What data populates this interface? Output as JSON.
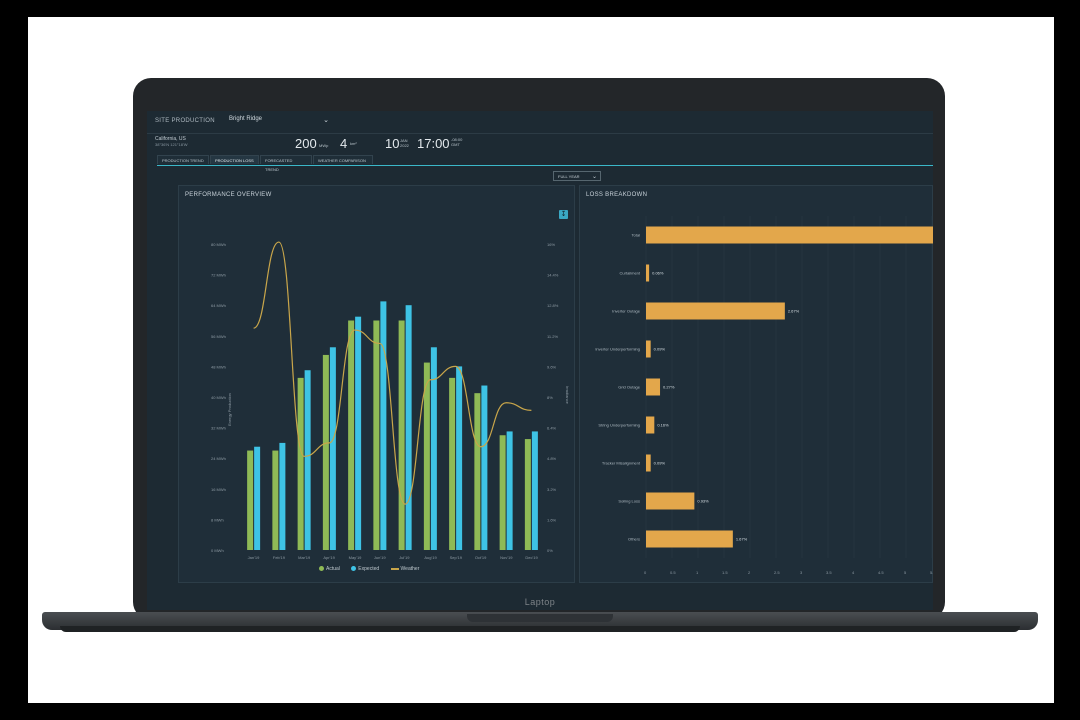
{
  "header": {
    "site_label": "SITE PRODUCTION",
    "site_value": "Bright Ridge",
    "location": "California, US",
    "coords": "38°36'N 121°18'W",
    "capacity_value": "200",
    "capacity_unit": "MWp",
    "area_value": "4",
    "area_unit": "km²",
    "date_value": "10",
    "date_month": "JAN",
    "date_year": "2022",
    "time_value": "17:00",
    "time_tz1": "GMT",
    "time_tz2": "-08:00"
  },
  "tabs": [
    {
      "label": "PRODUCTION TREND"
    },
    {
      "label": "PRODUCTION LOSS"
    },
    {
      "label": "FORECASTED TREND"
    },
    {
      "label": "WEATHER COMPARISON"
    }
  ],
  "period_select": "FULL YEAR",
  "colors": {
    "actual": "#8fba56",
    "expected": "#3ec3e5",
    "weather": "#c9a64a",
    "loss": "#e3a74b",
    "accent": "#3bb8c9"
  },
  "icons": {
    "download": "download-icon"
  },
  "performance_title": "PERFORMANCE OVERVIEW",
  "loss_title": "LOSS BREAKDOWN",
  "chart_data": [
    {
      "type": "bar",
      "title": "PERFORMANCE OVERVIEW",
      "ylabel": "Energy Production",
      "y2label": "Irradiance",
      "categories": [
        "Jan'19",
        "Feb'19",
        "Mar'19",
        "Apr'19",
        "May'19",
        "Jun'19",
        "Jul'19",
        "Aug'19",
        "Sep'19",
        "Oct'19",
        "Nov'19",
        "Dec'19"
      ],
      "y_ticks": [
        "0 MWh",
        "8 MWh",
        "16 MWh",
        "24 MWh",
        "32 MWh",
        "40 MWh",
        "48 MWh",
        "56 MWh",
        "64 MWh",
        "72 MWh",
        "80 MWh"
      ],
      "y2_ticks": [
        "0%",
        "1.6%",
        "3.2%",
        "4.8%",
        "6.4%",
        "8%",
        "9.6%",
        "11.2%",
        "12.8%",
        "14.4%",
        "16%"
      ],
      "ylim": [
        0,
        80
      ],
      "series": [
        {
          "name": "Actual",
          "values": [
            26,
            26,
            45,
            51,
            60,
            60,
            60,
            49,
            45,
            41,
            30,
            29
          ]
        },
        {
          "name": "Expected",
          "values": [
            27,
            28,
            47,
            53,
            61,
            65,
            64,
            53,
            48,
            43,
            31,
            31
          ]
        },
        {
          "name": "Weather",
          "values": [
            11.6,
            16.1,
            4.9,
            5.6,
            11.5,
            10.8,
            2.4,
            8.9,
            9.6,
            5.4,
            7.7,
            7.3
          ]
        }
      ],
      "legend": [
        "Actual",
        "Expected",
        "Weather"
      ],
      "legend_position": "bottom"
    },
    {
      "type": "bar",
      "orientation": "horizontal",
      "title": "LOSS BREAKDOWN",
      "categories": [
        "Total",
        "Curtailment",
        "Inverter Outage",
        "Inverter Underperforming",
        "Grid Outage",
        "String Underperforming",
        "Tracker Misalignment",
        "Soiling Loss",
        "Others"
      ],
      "values": [
        5.7,
        0.06,
        2.67,
        0.09,
        0.27,
        0.16,
        0.09,
        0.93,
        1.67
      ],
      "value_labels": [
        "",
        "0.06%",
        "2.67%",
        "0.09%",
        "0.27%",
        "0.16%",
        "0.09%",
        "0.93%",
        "1.67%"
      ],
      "x_ticks": [
        "0",
        "0.5",
        "1",
        "1.5",
        "2",
        "2.5",
        "3",
        "3.5",
        "4",
        "4.5",
        "5",
        "5.5"
      ],
      "xlim": [
        0,
        5.5
      ]
    }
  ],
  "brand": "Laptop"
}
